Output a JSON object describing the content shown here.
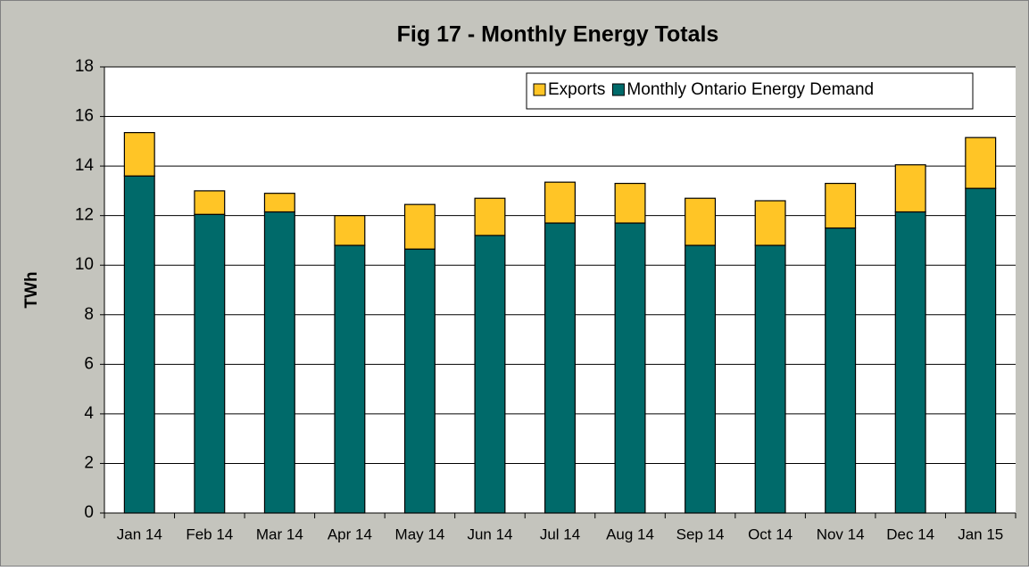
{
  "chart_data": {
    "type": "bar",
    "stacked": true,
    "title": "Fig  17 - Monthly Energy Totals",
    "y_label": "TWh",
    "categories": [
      "Jan 14",
      "Feb 14",
      "Mar 14",
      "Apr 14",
      "May 14",
      "Jun 14",
      "Jul 14",
      "Aug 14",
      "Sep 14",
      "Oct 14",
      "Nov 14",
      "Dec 14",
      "Jan 15"
    ],
    "series": [
      {
        "name": "Monthly Ontario Energy Demand",
        "color": "#006a6a",
        "values": [
          13.6,
          12.05,
          12.15,
          10.8,
          10.65,
          11.2,
          11.7,
          11.7,
          10.8,
          10.8,
          11.5,
          12.15,
          13.1
        ]
      },
      {
        "name": "Exports",
        "color": "#ffc526",
        "values": [
          1.75,
          0.95,
          0.75,
          1.2,
          1.8,
          1.5,
          1.65,
          1.6,
          1.9,
          1.8,
          1.8,
          1.9,
          2.05
        ]
      }
    ],
    "ylim": [
      0,
      18
    ],
    "yticks": [
      0,
      2,
      4,
      6,
      8,
      10,
      12,
      14,
      16,
      18
    ],
    "grid": true,
    "legend": "top-right"
  }
}
